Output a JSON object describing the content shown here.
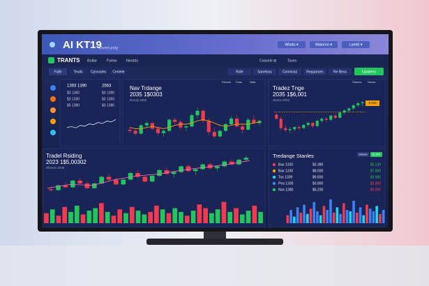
{
  "header": {
    "title": "AI KT19",
    "subtitle": "Overtunity",
    "menus": [
      "Wlsdo ▾",
      "Watsmo ▾",
      "Lseitd ▾"
    ]
  },
  "nav": {
    "brand": "TRANTS",
    "items": [
      "Bollar",
      "Fyiew",
      "Nestds"
    ],
    "right": [
      "Coasnte ⊞",
      "Taxes"
    ]
  },
  "toolbar": {
    "tabs": [
      "Fulle",
      "Teuds",
      "Cpnvsdes",
      "Cenlete"
    ],
    "actions": [
      "Rafe",
      "Sanetoss",
      "Conmoss",
      "Repparaes",
      "Re Bess"
    ],
    "primary": "Upalees"
  },
  "summary": {
    "headers": [
      "1393 1390",
      "2563"
    ],
    "rows": [
      [
        "$3 1350",
        "$3 1390"
      ],
      [
        "$3 1330",
        "$3 1350"
      ],
      [
        "$5 1380",
        "$3 1380"
      ]
    ],
    "line": [
      30,
      34,
      28,
      40,
      36,
      48,
      44,
      55,
      50,
      62,
      58,
      70
    ],
    "ylim": [
      0,
      100
    ],
    "line_color": "#e2e8f0"
  },
  "market": {
    "title": "Nav Trdange",
    "value": "2035 1$0303",
    "caption": "Dreoly 2060",
    "legend": [
      "Dmadd",
      "Feas",
      "Ntiat"
    ],
    "candles": [
      [
        40,
        45,
        35,
        38
      ],
      [
        38,
        42,
        30,
        33
      ],
      [
        33,
        50,
        31,
        48
      ],
      [
        48,
        55,
        44,
        52
      ],
      [
        52,
        54,
        40,
        42
      ],
      [
        42,
        46,
        30,
        34
      ],
      [
        34,
        40,
        28,
        38
      ],
      [
        38,
        60,
        36,
        58
      ],
      [
        58,
        62,
        50,
        54
      ],
      [
        54,
        58,
        40,
        44
      ],
      [
        44,
        48,
        38,
        46
      ],
      [
        46,
        70,
        44,
        66
      ],
      [
        66,
        80,
        60,
        74
      ],
      [
        74,
        78,
        52,
        56
      ],
      [
        56,
        60,
        30,
        36
      ],
      [
        36,
        44,
        24,
        28
      ],
      [
        28,
        40,
        26,
        38
      ],
      [
        38,
        52,
        36,
        50
      ],
      [
        50,
        64,
        48,
        60
      ],
      [
        60,
        66,
        44,
        46
      ],
      [
        46,
        50,
        34,
        40
      ],
      [
        40,
        62,
        38,
        58
      ],
      [
        58,
        66,
        50,
        52
      ],
      [
        52,
        58,
        48,
        56
      ]
    ],
    "ma": [
      44,
      42,
      42,
      44,
      46,
      44,
      42,
      44,
      48,
      50,
      50,
      52,
      56,
      58,
      56,
      52,
      48,
      46,
      48,
      50,
      50,
      50,
      52,
      54
    ],
    "ylim": [
      20,
      85
    ],
    "up_color": "#22c55e",
    "down_color": "#ef3b4f",
    "ma_color": "#f59e0b"
  },
  "trend": {
    "title": "Tradez Tnge",
    "value": "2035 1$6,001",
    "caption": "Stotca 2003",
    "legend": [
      "Stames",
      "Nessa"
    ],
    "badge": "$.000",
    "candles": [
      [
        70,
        74,
        60,
        62
      ],
      [
        62,
        66,
        40,
        44
      ],
      [
        44,
        50,
        36,
        40
      ],
      [
        40,
        46,
        34,
        42
      ],
      [
        42,
        48,
        38,
        46
      ],
      [
        46,
        50,
        40,
        44
      ],
      [
        44,
        52,
        42,
        50
      ],
      [
        50,
        56,
        46,
        54
      ],
      [
        54,
        56,
        44,
        48
      ],
      [
        48,
        60,
        46,
        58
      ],
      [
        58,
        64,
        54,
        62
      ],
      [
        62,
        66,
        56,
        60
      ],
      [
        60,
        70,
        58,
        68
      ],
      [
        68,
        72,
        62,
        64
      ],
      [
        64,
        76,
        62,
        74
      ],
      [
        74,
        80,
        70,
        78
      ],
      [
        78,
        84,
        74,
        82
      ],
      [
        82,
        90,
        78,
        88
      ],
      [
        88,
        94,
        84,
        92
      ],
      [
        92,
        96,
        86,
        94
      ]
    ],
    "level": 75,
    "ylim": [
      30,
      100
    ],
    "up_color": "#22c55e",
    "down_color": "#ef3b4f",
    "level_color": "#f59e0b"
  },
  "history": {
    "title": "Tradel Rsiding",
    "value": "2023 1$5,00302",
    "caption": "Rhexss 2035",
    "candles": [
      [
        20,
        26,
        14,
        18
      ],
      [
        18,
        30,
        16,
        28
      ],
      [
        28,
        34,
        22,
        24
      ],
      [
        24,
        40,
        22,
        38
      ],
      [
        38,
        44,
        30,
        32
      ],
      [
        32,
        36,
        20,
        22
      ],
      [
        22,
        34,
        20,
        32
      ],
      [
        32,
        48,
        30,
        46
      ],
      [
        46,
        52,
        36,
        40
      ],
      [
        40,
        44,
        28,
        30
      ],
      [
        30,
        42,
        28,
        40
      ],
      [
        40,
        56,
        38,
        54
      ],
      [
        54,
        60,
        42,
        46
      ],
      [
        46,
        50,
        34,
        36
      ],
      [
        36,
        50,
        34,
        48
      ],
      [
        48,
        62,
        46,
        60
      ],
      [
        60,
        66,
        50,
        52
      ],
      [
        52,
        58,
        44,
        56
      ],
      [
        56,
        70,
        54,
        68
      ],
      [
        68,
        72,
        56,
        58
      ],
      [
        58,
        64,
        50,
        62
      ],
      [
        62,
        74,
        60,
        72
      ],
      [
        72,
        76,
        62,
        64
      ],
      [
        64,
        70,
        58,
        68
      ],
      [
        68,
        80,
        66,
        78
      ],
      [
        78,
        82,
        70,
        72
      ],
      [
        72,
        84,
        70,
        82
      ],
      [
        82,
        90,
        78,
        86
      ]
    ],
    "trend": [
      22,
      30,
      28,
      40,
      48,
      52,
      60,
      66,
      72,
      80
    ],
    "ylim": [
      10,
      95
    ],
    "up_color": "#22c55e",
    "down_color": "#ef3b4f",
    "trend_color": "#f472b6",
    "volume": {
      "values": [
        40,
        55,
        30,
        65,
        45,
        70,
        35,
        50,
        60,
        80,
        45,
        30,
        55,
        40,
        65,
        50,
        35,
        45,
        70,
        55,
        40,
        60,
        45,
        30,
        50,
        75,
        60,
        40,
        55,
        85,
        45,
        60,
        35,
        50,
        70,
        45
      ],
      "color_index": [
        0,
        1,
        0,
        0,
        1,
        1,
        0,
        1,
        1,
        0,
        1,
        0,
        0,
        1,
        0,
        1,
        1,
        0,
        0,
        1,
        0,
        1,
        1,
        0,
        1,
        0,
        0,
        1,
        1,
        0,
        1,
        0,
        1,
        1,
        0,
        1
      ],
      "colors": [
        "#ef3b4f",
        "#22c55e"
      ],
      "ylim": [
        0,
        100
      ]
    }
  },
  "stats": {
    "title": "Tredange Stanles",
    "buttons": [
      "Stamss",
      "$1.860"
    ],
    "rows": [
      {
        "name": "Bax 1330",
        "value": "$3.380",
        "change": "$5.130",
        "color": "#ef3b4f",
        "change_color": "#22c55e"
      },
      {
        "name": "Bax 1330",
        "value": "$8,550",
        "change": "$7.580",
        "color": "#f59e0b",
        "change_color": "#22c55e"
      },
      {
        "name": "Tox 1339",
        "value": "$9.830",
        "change": "$9.980",
        "color": "#22d3ee",
        "change_color": "#22c55e"
      },
      {
        "name": "Pea 1330",
        "value": "$3.800",
        "change": "$3.880",
        "color": "#3b82f6",
        "change_color": "#ef3b4f"
      },
      {
        "name": "Nox 1380",
        "value": "$6,230",
        "change": "$6.990",
        "color": "#22c55e",
        "change_color": "#ef3b4f"
      }
    ],
    "bars": {
      "values": [
        30,
        50,
        25,
        60,
        40,
        70,
        35,
        55,
        80,
        45,
        30,
        65,
        50,
        90,
        40,
        60,
        35,
        75,
        50,
        45,
        85,
        40,
        60,
        30,
        70,
        55,
        45,
        65,
        35,
        50
      ],
      "color_index": [
        0,
        1,
        2,
        1,
        0,
        1,
        2,
        0,
        1,
        1,
        2,
        0,
        1,
        1,
        0,
        2,
        1,
        0,
        1,
        2,
        1,
        0,
        1,
        2,
        0,
        1,
        1,
        2,
        0,
        1
      ],
      "colors": [
        "#ef3b4f",
        "#3b82f6",
        "#22d3ee"
      ],
      "ylim": [
        0,
        100
      ]
    }
  }
}
